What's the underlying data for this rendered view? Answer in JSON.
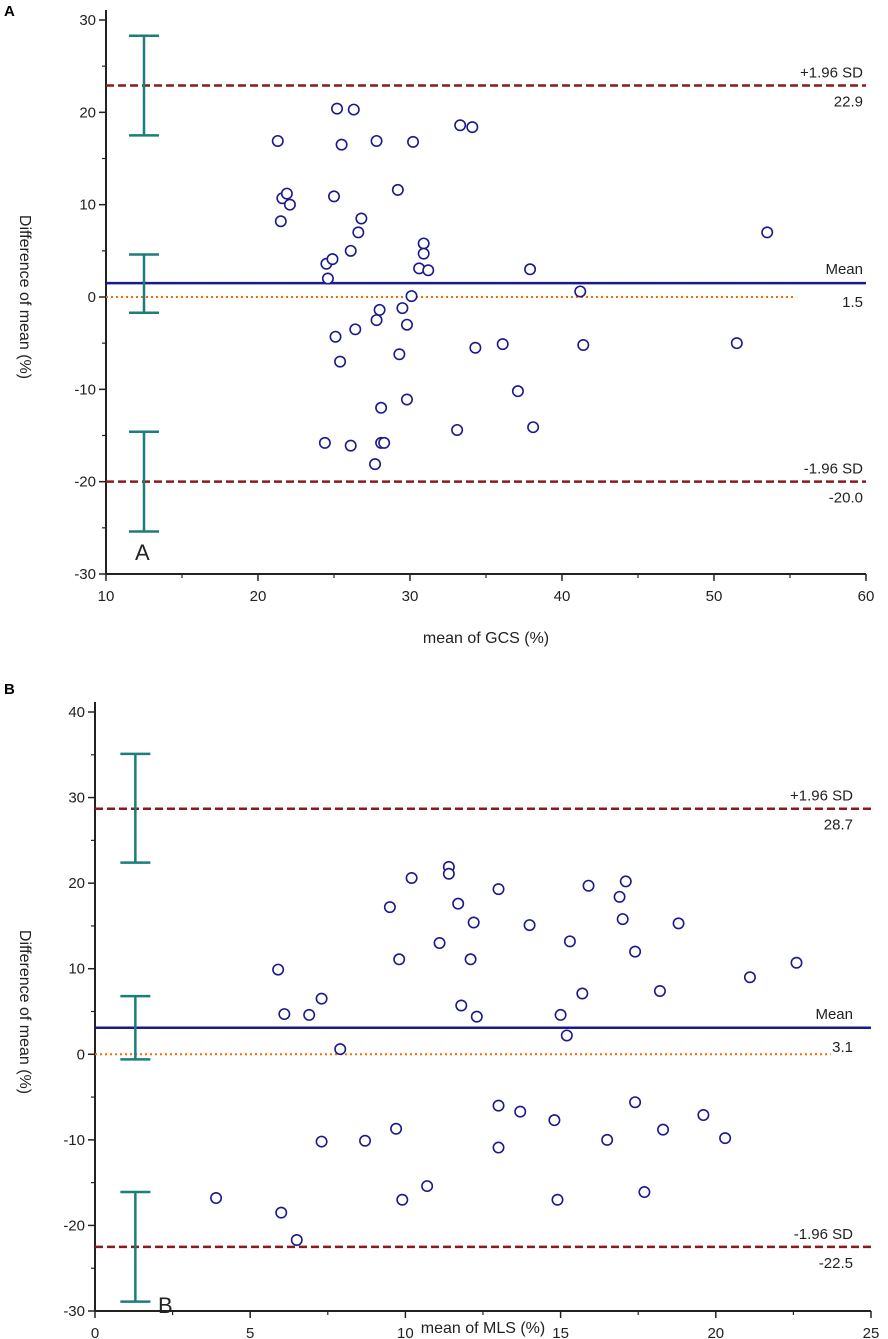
{
  "figure": {
    "panels": [
      "A",
      "B"
    ]
  },
  "colors": {
    "points": "#1a1a8c",
    "mean_line": "#1a1a8c",
    "limit_lines": "#8b1a1a",
    "zero_line": "#ff6a00",
    "error_bars": "#1a7f7a",
    "axes": "#222222"
  },
  "chart_data": [
    {
      "type": "scatter",
      "panel_id": "A",
      "corner_letter": "A",
      "xlabel": "mean of GCS (%)",
      "ylabel": "Difference of  mean (%)",
      "xlim": [
        10,
        60
      ],
      "ylim": [
        -30,
        30
      ],
      "x_ticks": [
        "10",
        "20",
        "30",
        "40",
        "50",
        "60"
      ],
      "y_ticks": [
        "-30",
        "-20",
        "-10",
        "0",
        "10",
        "20",
        "30"
      ],
      "x_tick_values": [
        10,
        20,
        30,
        40,
        50,
        60
      ],
      "y_tick_values": [
        -30,
        -20,
        -10,
        0,
        10,
        20,
        30
      ],
      "zero_line_x_end": 55.3,
      "lines": {
        "upper": {
          "label": "+1.96 SD",
          "value_label": "22.9",
          "y": 22.9
        },
        "mean": {
          "label": "Mean",
          "value_label": "1.5",
          "y": 1.5
        },
        "lower": {
          "label": "-1.96 SD",
          "value_label": "-20.0",
          "y": -20.0
        }
      },
      "error_bars": [
        {
          "x": 12.5,
          "low": 17.5,
          "high": 28.3
        },
        {
          "x": 12.5,
          "low": -1.7,
          "high": 4.6
        },
        {
          "x": 12.5,
          "low": -25.4,
          "high": -14.6
        }
      ],
      "points": [
        [
          21.3,
          16.9
        ],
        [
          21.5,
          8.2
        ],
        [
          21.6,
          10.7
        ],
        [
          21.9,
          11.2
        ],
        [
          22.1,
          10.0
        ],
        [
          24.5,
          3.6
        ],
        [
          24.6,
          2.0
        ],
        [
          24.9,
          4.1
        ],
        [
          25.0,
          10.9
        ],
        [
          25.1,
          -4.3
        ],
        [
          25.2,
          20.4
        ],
        [
          25.4,
          -7.0
        ],
        [
          25.5,
          16.5
        ],
        [
          26.1,
          5.0
        ],
        [
          26.3,
          20.3
        ],
        [
          26.4,
          -3.5
        ],
        [
          26.6,
          7.0
        ],
        [
          26.8,
          8.5
        ],
        [
          27.8,
          16.9
        ],
        [
          27.8,
          -2.5
        ],
        [
          28.0,
          -1.4
        ],
        [
          28.1,
          -12.0
        ],
        [
          28.1,
          -15.8
        ],
        [
          28.3,
          -15.8
        ],
        [
          27.7,
          -18.1
        ],
        [
          29.2,
          11.6
        ],
        [
          29.3,
          -6.2
        ],
        [
          29.5,
          -1.2
        ],
        [
          29.8,
          -3.0
        ],
        [
          29.8,
          -11.1
        ],
        [
          30.1,
          0.1
        ],
        [
          30.2,
          16.8
        ],
        [
          30.6,
          3.1
        ],
        [
          30.9,
          5.8
        ],
        [
          30.9,
          4.7
        ],
        [
          31.2,
          2.9
        ],
        [
          33.1,
          -14.4
        ],
        [
          33.3,
          18.6
        ],
        [
          34.1,
          18.4
        ],
        [
          34.3,
          -5.5
        ],
        [
          36.1,
          -5.1
        ],
        [
          37.1,
          -10.2
        ],
        [
          37.9,
          3.0
        ],
        [
          38.1,
          -14.1
        ],
        [
          41.2,
          0.6
        ],
        [
          41.4,
          -5.2
        ],
        [
          51.5,
          -5.0
        ],
        [
          53.5,
          7.0
        ],
        [
          24.4,
          -15.8
        ],
        [
          26.1,
          -16.1
        ]
      ]
    },
    {
      "type": "scatter",
      "panel_id": "B",
      "corner_letter": "B",
      "xlabel": "mean of MLS (%)",
      "ylabel": "Difference of  mean (%)",
      "xlim": [
        0,
        25
      ],
      "ylim": [
        -30,
        40
      ],
      "x_ticks": [
        "0",
        "5",
        "10",
        "15",
        "20",
        "25"
      ],
      "y_ticks": [
        "-30",
        "-20",
        "-10",
        "0",
        "10",
        "20",
        "30",
        "40"
      ],
      "x_tick_values": [
        0,
        5,
        10,
        15,
        20,
        25
      ],
      "y_tick_values": [
        -30,
        -20,
        -10,
        0,
        10,
        20,
        30,
        40
      ],
      "zero_line_x_end": 23.7,
      "lines": {
        "upper": {
          "label": "+1.96 SD",
          "value_label": "28.7",
          "y": 28.7
        },
        "mean": {
          "label": "Mean",
          "value_label": "3.1",
          "y": 3.1
        },
        "lower": {
          "label": "-1.96 SD",
          "value_label": "-22.5",
          "y": -22.5
        }
      },
      "error_bars": [
        {
          "x": 1.3,
          "low": 22.4,
          "high": 35.1
        },
        {
          "x": 1.3,
          "low": -0.6,
          "high": 6.8
        },
        {
          "x": 1.3,
          "low": -28.9,
          "high": -16.1
        }
      ],
      "points": [
        [
          3.9,
          -16.8
        ],
        [
          5.9,
          9.9
        ],
        [
          6.0,
          -18.5
        ],
        [
          6.1,
          4.7
        ],
        [
          6.5,
          -21.7
        ],
        [
          6.9,
          4.6
        ],
        [
          7.3,
          6.5
        ],
        [
          7.3,
          -10.2
        ],
        [
          7.9,
          0.6
        ],
        [
          8.7,
          -10.1
        ],
        [
          9.5,
          17.2
        ],
        [
          9.7,
          -8.7
        ],
        [
          9.8,
          11.1
        ],
        [
          9.9,
          -17.0
        ],
        [
          10.2,
          20.6
        ],
        [
          10.7,
          -15.4
        ],
        [
          11.1,
          13.0
        ],
        [
          11.4,
          21.9
        ],
        [
          11.4,
          21.1
        ],
        [
          11.7,
          17.6
        ],
        [
          11.8,
          5.7
        ],
        [
          12.1,
          11.1
        ],
        [
          12.2,
          15.4
        ],
        [
          12.3,
          4.4
        ],
        [
          13.0,
          19.3
        ],
        [
          13.0,
          -6.0
        ],
        [
          13.0,
          -10.9
        ],
        [
          13.7,
          -6.7
        ],
        [
          14.0,
          15.1
        ],
        [
          14.8,
          -7.7
        ],
        [
          14.9,
          -17.0
        ],
        [
          15.0,
          4.6
        ],
        [
          15.2,
          2.2
        ],
        [
          15.3,
          13.2
        ],
        [
          15.7,
          7.1
        ],
        [
          15.9,
          19.7
        ],
        [
          16.5,
          -10.0
        ],
        [
          16.9,
          18.4
        ],
        [
          17.0,
          15.8
        ],
        [
          17.1,
          20.2
        ],
        [
          17.4,
          12.0
        ],
        [
          17.4,
          -5.6
        ],
        [
          17.7,
          -16.1
        ],
        [
          18.2,
          7.4
        ],
        [
          18.3,
          -8.8
        ],
        [
          18.8,
          15.3
        ],
        [
          19.6,
          -7.1
        ],
        [
          20.3,
          -9.8
        ],
        [
          21.1,
          9.0
        ],
        [
          22.6,
          10.7
        ]
      ]
    }
  ]
}
